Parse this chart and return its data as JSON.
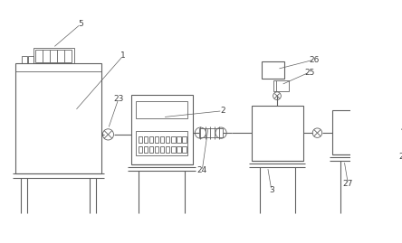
{
  "background_color": "#ffffff",
  "line_color": "#606060",
  "label_color": "#404040",
  "lw": 0.8,
  "tlw": 0.6,
  "fig_width": 4.44,
  "fig_height": 2.69,
  "dpi": 100
}
